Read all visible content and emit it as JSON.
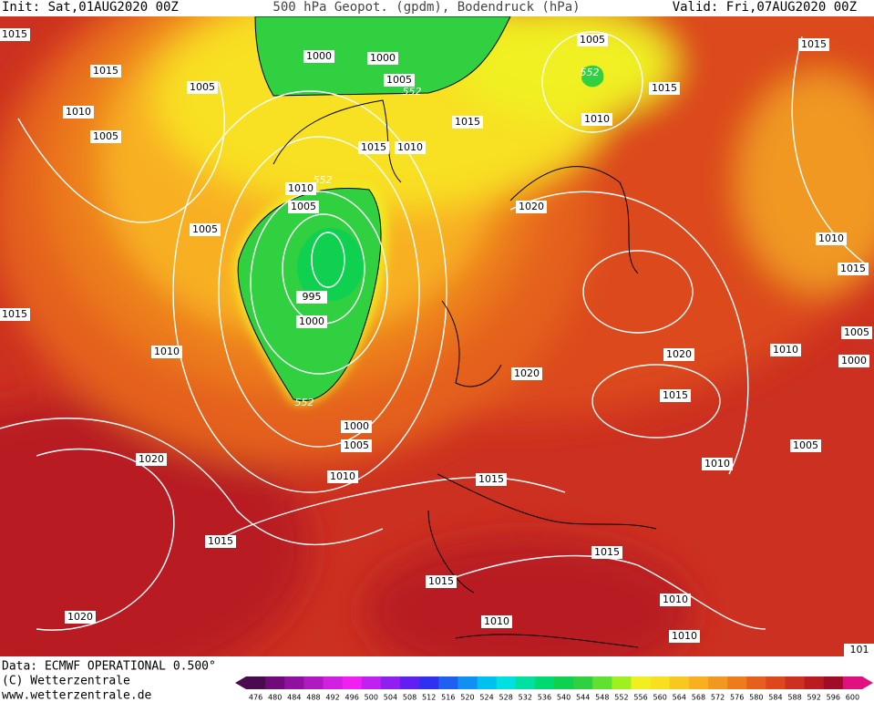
{
  "header": {
    "init": "Init: Sat,01AUG2020 00Z",
    "title": "500 hPa Geopot. (gpdm), Bodendruck (hPa)",
    "valid": "Valid: Fri,07AUG2020 00Z"
  },
  "footer": {
    "source": "Data: ECMWF OPERATIONAL 0.500°",
    "copyright": "(C) Wetterzentrale",
    "url": "www.wetterzentrale.de"
  },
  "isobar_labels": [
    "1015",
    "1015",
    "1005",
    "1010",
    "1005",
    "1000",
    "1000",
    "1005",
    "1005",
    "1015",
    "1015",
    "1010",
    "1015",
    "1015",
    "1010",
    "1010",
    "1005",
    "1020",
    "1005",
    "1010",
    "1015",
    "995",
    "1000",
    "1015",
    "1010",
    "1010",
    "1005",
    "1000",
    "1020",
    "1020",
    "1015",
    "1000",
    "1005",
    "1005",
    "1010",
    "1010",
    "1020",
    "1015",
    "1015",
    "1015",
    "1015",
    "1010",
    "1020",
    "1010",
    "1010",
    "101"
  ],
  "geopotential_labels": [
    "552",
    "552",
    "552",
    "552"
  ],
  "colorbar": {
    "labels": [
      476,
      480,
      484,
      488,
      492,
      496,
      500,
      504,
      508,
      512,
      516,
      520,
      524,
      528,
      532,
      536,
      540,
      544,
      548,
      552,
      556,
      560,
      564,
      568,
      572,
      576,
      580,
      584,
      588,
      592,
      596,
      600
    ],
    "colors": [
      "#4b0a50",
      "#700a78",
      "#9010a0",
      "#b018c0",
      "#d020e0",
      "#f020f0",
      "#c020f0",
      "#9020f0",
      "#6020f0",
      "#3030f0",
      "#2060f0",
      "#1090f0",
      "#00c0f0",
      "#00e0e0",
      "#00e0a0",
      "#00d870",
      "#10d050",
      "#30d040",
      "#60e030",
      "#a0f020",
      "#f0f020",
      "#f8e020",
      "#f8c820",
      "#f8b020",
      "#f09820",
      "#ec7c1c",
      "#e4601c",
      "#dc481c",
      "#cc3020",
      "#b81c20",
      "#a00c28",
      "#e01080"
    ]
  }
}
